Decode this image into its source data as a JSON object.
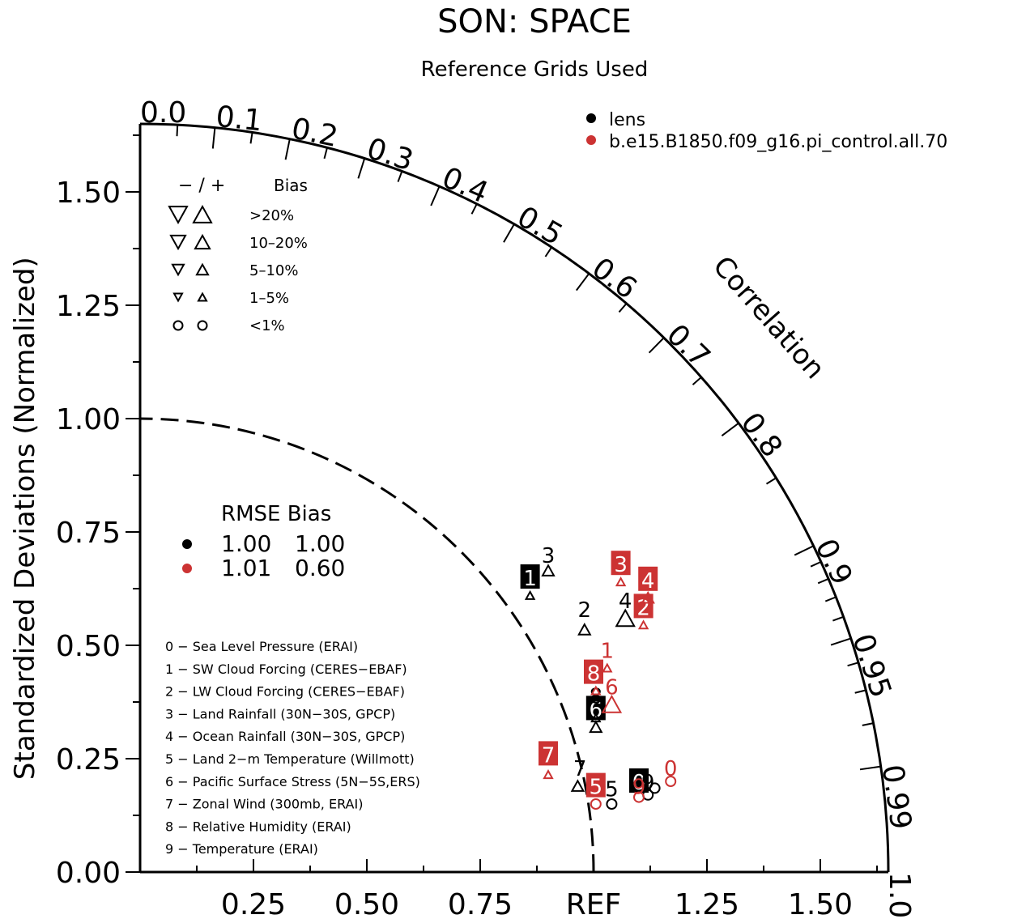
{
  "chart_data": {
    "type": "scatter",
    "subtype": "taylor-diagram",
    "title": "SON: SPACE",
    "subtitle": "Reference Grids Used",
    "ylabel": "Standardized Deviations (Normalized)",
    "corr_label": "Correlation",
    "ylim": [
      0,
      1.65
    ],
    "y_ticks": [
      {
        "v": 0.0,
        "label": "0.00"
      },
      {
        "v": 0.25,
        "label": "0.25"
      },
      {
        "v": 0.5,
        "label": "0.50"
      },
      {
        "v": 0.75,
        "label": "0.75"
      },
      {
        "v": 1.0,
        "label": "1.00"
      },
      {
        "v": 1.25,
        "label": "1.25"
      },
      {
        "v": 1.5,
        "label": "1.50"
      }
    ],
    "x_ticks": [
      {
        "v": 0.25,
        "label": "0.25"
      },
      {
        "v": 0.5,
        "label": "0.50"
      },
      {
        "v": 0.75,
        "label": "0.75"
      },
      {
        "v": 1.0,
        "label": "REF"
      },
      {
        "v": 1.25,
        "label": "1.25"
      },
      {
        "v": 1.5,
        "label": "1.50"
      }
    ],
    "corr_ticks": [
      {
        "v": 0.0,
        "label": "0.0"
      },
      {
        "v": 0.1,
        "label": "0.1"
      },
      {
        "v": 0.2,
        "label": "0.2"
      },
      {
        "v": 0.3,
        "label": "0.3"
      },
      {
        "v": 0.4,
        "label": "0.4"
      },
      {
        "v": 0.5,
        "label": "0.5"
      },
      {
        "v": 0.6,
        "label": "0.6"
      },
      {
        "v": 0.7,
        "label": "0.7"
      },
      {
        "v": 0.8,
        "label": "0.8"
      },
      {
        "v": 0.9,
        "label": "0.9"
      },
      {
        "v": 0.95,
        "label": "0.95"
      },
      {
        "v": 0.99,
        "label": "0.99"
      },
      {
        "v": 1.0,
        "label": "1.0"
      }
    ],
    "corr_minor_ticks": [
      0.05,
      0.15,
      0.25,
      0.35,
      0.45,
      0.55,
      0.65,
      0.75,
      0.85,
      0.91,
      0.92,
      0.93,
      0.94,
      0.96,
      0.97,
      0.98
    ],
    "ref_arc_std": 1.0,
    "series": [
      {
        "name": "lens",
        "color": "#000000",
        "points": [
          {
            "id": "0",
            "x": 1.1,
            "y": 0.2,
            "bias": "<1%",
            "marker": "circle",
            "m_x": 1.12,
            "m_y": 0.17,
            "label_boxed": true
          },
          {
            "id": "1",
            "x": 0.86,
            "y": 0.65,
            "bias": "1-5%",
            "marker": "up",
            "m_x": 0.86,
            "m_y": 0.61,
            "label_boxed": true
          },
          {
            "id": "2",
            "x": 0.98,
            "y": 0.58,
            "bias": "5-10%",
            "marker": "up",
            "m_x": 0.98,
            "m_y": 0.535,
            "label_boxed": false
          },
          {
            "id": "3",
            "x": 0.9,
            "y": 0.7,
            "bias": "5-10%",
            "marker": "up",
            "m_x": 0.9,
            "m_y": 0.665,
            "label_boxed": false
          },
          {
            "id": "4",
            "x": 1.07,
            "y": 0.6,
            "bias": ">20%",
            "marker": "up",
            "m_x": 1.07,
            "m_y": 0.56,
            "label_boxed": false
          },
          {
            "id": "5",
            "x": 1.04,
            "y": 0.185,
            "bias": "<1%",
            "marker": "circle",
            "m_x": 1.04,
            "m_y": 0.15,
            "label_boxed": false
          },
          {
            "id": "6",
            "x": 1.005,
            "y": 0.36,
            "bias": "5-10%",
            "marker": "up",
            "m_x": 1.005,
            "m_y": 0.32,
            "label_boxed": true
          },
          {
            "id": "7",
            "x": 0.97,
            "y": 0.23,
            "bias": "5-10%",
            "marker": "up",
            "m_x": 0.965,
            "m_y": 0.19,
            "label_boxed": false
          },
          {
            "id": "8",
            "x": 1.005,
            "y": 0.39,
            "bias": "1-5%",
            "marker": "up",
            "m_x": 1.005,
            "m_y": 0.34,
            "label_boxed": false
          },
          {
            "id": "9",
            "x": 1.12,
            "y": 0.2,
            "bias": "<1%",
            "marker": "circle",
            "m_x": 1.135,
            "m_y": 0.185,
            "label_boxed": false
          }
        ]
      },
      {
        "name": "b.e15.B1850.f09_g16.pi_control.all.70",
        "color": "#cc3333",
        "points": [
          {
            "id": "0",
            "x": 1.17,
            "y": 0.23,
            "bias": "<1%",
            "marker": "circle",
            "m_x": 1.17,
            "m_y": 0.2,
            "label_boxed": false
          },
          {
            "id": "1",
            "x": 1.03,
            "y": 0.49,
            "bias": "1-5%",
            "marker": "up",
            "m_x": 1.03,
            "m_y": 0.45,
            "label_boxed": false
          },
          {
            "id": "2",
            "x": 1.11,
            "y": 0.585,
            "bias": "1-5%",
            "marker": "up",
            "m_x": 1.11,
            "m_y": 0.545,
            "label_boxed": true
          },
          {
            "id": "3",
            "x": 1.06,
            "y": 0.68,
            "bias": "1-5%",
            "marker": "up",
            "m_x": 1.06,
            "m_y": 0.64,
            "label_boxed": true
          },
          {
            "id": "4",
            "x": 1.12,
            "y": 0.645,
            "bias": "5-10%",
            "marker": "up",
            "m_x": 1.12,
            "m_y": 0.605,
            "label_boxed": true
          },
          {
            "id": "5",
            "x": 1.005,
            "y": 0.19,
            "bias": "<1%",
            "marker": "circle",
            "m_x": 1.005,
            "m_y": 0.15,
            "label_boxed": true
          },
          {
            "id": "6",
            "x": 1.04,
            "y": 0.41,
            "bias": ">20%",
            "marker": "up",
            "m_x": 1.04,
            "m_y": 0.37,
            "label_boxed": false
          },
          {
            "id": "7",
            "x": 0.9,
            "y": 0.26,
            "bias": "1-5%",
            "marker": "up",
            "m_x": 0.9,
            "m_y": 0.215,
            "label_boxed": true
          },
          {
            "id": "8",
            "x": 1.0,
            "y": 0.44,
            "bias": "1-5%",
            "marker": "up",
            "m_x": 1.005,
            "m_y": 0.4,
            "label_boxed": true
          },
          {
            "id": "9",
            "x": 1.1,
            "y": 0.19,
            "bias": "<1%",
            "marker": "circle",
            "m_x": 1.1,
            "m_y": 0.165,
            "label_boxed": false
          }
        ]
      }
    ],
    "legend": {
      "placement": "top-right",
      "entries": [
        "lens",
        "b.e15.B1850.f09_g16.pi_control.all.70"
      ]
    },
    "bias_legend": {
      "header_sign": "−  /  +",
      "header_label": "Bias",
      "rows": [
        {
          "label": ">20%",
          "marker": "triangle",
          "size": 22
        },
        {
          "label": "10–20%",
          "marker": "triangle",
          "size": 18
        },
        {
          "label": "5–10%",
          "marker": "triangle",
          "size": 14
        },
        {
          "label": "1–5%",
          "marker": "triangle",
          "size": 10
        },
        {
          "label": "<1%",
          "marker": "circle",
          "size": 12
        }
      ]
    },
    "rmse_table": {
      "header": "RMSE Bias",
      "rows": [
        {
          "color": "#000000",
          "rmse": "1.00",
          "bias": "1.00"
        },
        {
          "color": "#cc3333",
          "rmse": "1.01",
          "bias": "0.60"
        }
      ]
    },
    "variables": [
      "0 − Sea Level Pressure (ERAI)",
      "1 − SW Cloud Forcing (CERES−EBAF)",
      "2 − LW Cloud Forcing (CERES−EBAF)",
      "3 − Land Rainfall (30N−30S, GPCP)",
      "4 − Ocean Rainfall (30N−30S, GPCP)",
      "5 − Land 2−m Temperature (Willmott)",
      "6 − Pacific Surface Stress (5N−5S,ERS)",
      "7 − Zonal Wind (300mb, ERAI)",
      "8 − Relative Humidity (ERAI)",
      "9 − Temperature (ERAI)"
    ]
  }
}
